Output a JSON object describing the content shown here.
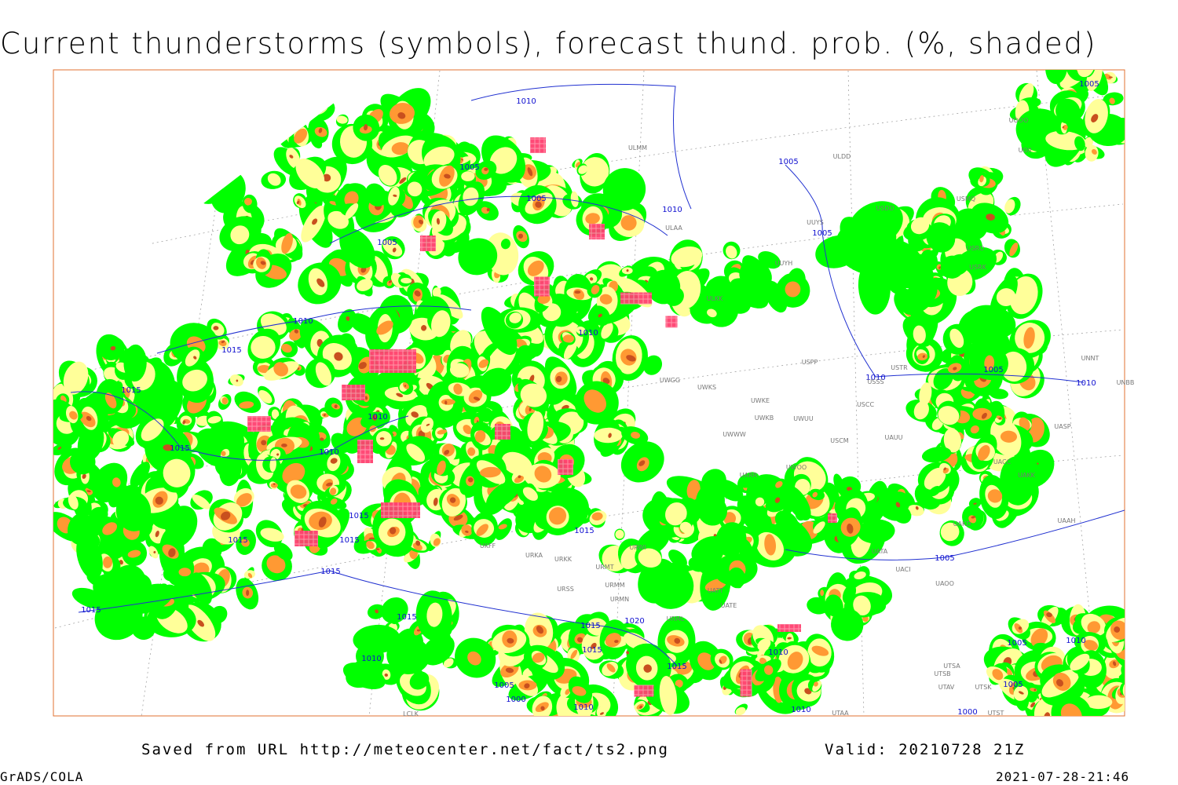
{
  "header": {
    "title": "Current thunderstorms (symbols), forecast thund. prob. (%, shaded)"
  },
  "isobar_labels": [
    "1010",
    "1005",
    "1005",
    "1010",
    "1005",
    "1005",
    "1005",
    "1010",
    "1015",
    "1015",
    "1010",
    "1010",
    "1015",
    "1010",
    "1015",
    "1015",
    "1015",
    "1015",
    "1015",
    "1015",
    "1015",
    "1015",
    "1020",
    "1015",
    "1010",
    "1015",
    "1005",
    "1000",
    "1010",
    "1010",
    "1010",
    "1005",
    "1005",
    "1010",
    "1005",
    "1010",
    "1005",
    "1005",
    "1010",
    "1000"
  ],
  "station_labels": [
    "ULMM",
    "ULDD",
    "UOII",
    "UOOO",
    "USDD",
    "USMQ",
    "ULAA",
    "UUYS",
    "UUYH",
    "USRO",
    "USRK",
    "ULKK",
    "UNNT",
    "UNBB",
    "USPP",
    "USTR",
    "USSS",
    "UWGG",
    "UWKS",
    "UWKE",
    "UWKB",
    "UWUU",
    "USCC",
    "USCM",
    "UAUU",
    "UWWW",
    "UASP",
    "UACC",
    "UAKK",
    "UWOO",
    "UARR",
    "UAKD",
    "UAAH",
    "UATA",
    "UACI",
    "UAOO",
    "UATE",
    "UATT",
    "URMT",
    "URMM",
    "URMN",
    "URSS",
    "URML",
    "URKK",
    "URKA",
    "URWI",
    "UKFF",
    "UTSA",
    "UTSB",
    "UTAV",
    "UTSK",
    "UTST",
    "UTAA",
    "LCLK"
  ],
  "footer": {
    "source": "Saved from URL http://meteocenter.net/fact/ts2.png",
    "valid": "Valid: 20210728 21Z",
    "software": "GrADS/COLA",
    "timestamp": "2021-07-28-21:46"
  }
}
